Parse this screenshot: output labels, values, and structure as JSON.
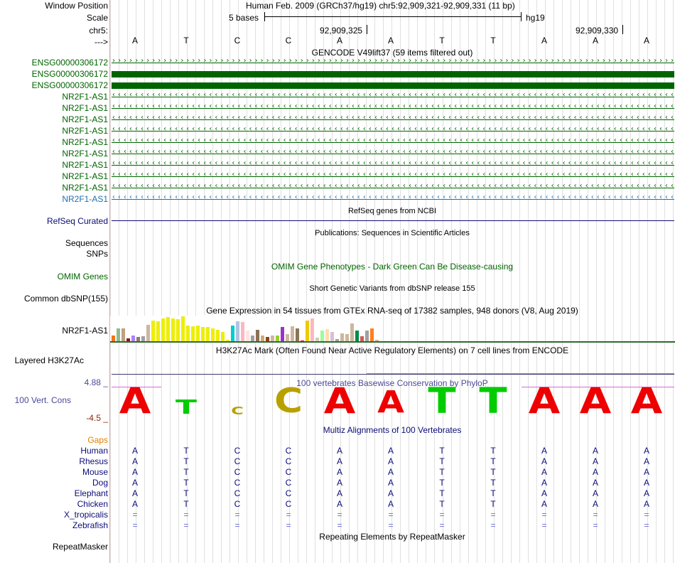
{
  "header": {
    "window_position_label": "Window Position",
    "scale_label": "Scale",
    "chrom_label": "chr5:",
    "strand_label": "--->",
    "assembly_text": "Human Feb. 2009 (GRCh37/hg19)   chr5:92,909,321-92,909,331 (11 bp)",
    "scale_text": "5 bases",
    "scale_db": "hg19",
    "pos_left": "92,909,325",
    "pos_right": "92,909,330",
    "bases": [
      "A",
      "T",
      "C",
      "C",
      "A",
      "A",
      "T",
      "T",
      "A",
      "A",
      "A"
    ]
  },
  "gencode": {
    "title": "GENCODE V49lift37 (59 items filtered out)",
    "items": [
      {
        "label": "ENSG00000306172",
        "style": "arrows-right",
        "color": "#006400"
      },
      {
        "label": "ENSG00000306172",
        "style": "solid",
        "color": "#006400"
      },
      {
        "label": "ENSG00000306172",
        "style": "solid",
        "color": "#006400"
      },
      {
        "label": "NR2F1-AS1",
        "style": "arrows-left",
        "color": "#006400"
      },
      {
        "label": "NR2F1-AS1",
        "style": "arrows-left",
        "color": "#006400"
      },
      {
        "label": "NR2F1-AS1",
        "style": "arrows-left",
        "color": "#006400"
      },
      {
        "label": "NR2F1-AS1",
        "style": "arrows-left",
        "color": "#006400"
      },
      {
        "label": "NR2F1-AS1",
        "style": "arrows-left",
        "color": "#006400"
      },
      {
        "label": "NR2F1-AS1",
        "style": "arrows-left",
        "color": "#006400"
      },
      {
        "label": "NR2F1-AS1",
        "style": "arrows-left",
        "color": "#006400"
      },
      {
        "label": "NR2F1-AS1",
        "style": "arrows-left",
        "color": "#006400"
      },
      {
        "label": "NR2F1-AS1",
        "style": "arrows-left",
        "color": "#006400"
      },
      {
        "label": "NR2F1-AS1",
        "style": "arrows-left",
        "color": "#1f6fae"
      }
    ]
  },
  "refseq": {
    "title": "RefSeq genes from NCBI",
    "label": "RefSeq Curated",
    "color": "#0c0c78"
  },
  "publications": {
    "title": "Publications: Sequences in Scientific Articles",
    "label1": "Sequences",
    "label2": "SNPs"
  },
  "omim": {
    "title": "OMIM Gene Phenotypes - Dark Green Can Be Disease-causing",
    "label": "OMIM Genes",
    "color": "#006400"
  },
  "dbsnp": {
    "title": "Short Genetic Variants from dbSNP release 155",
    "label": "Common dbSNP(155)"
  },
  "gtex": {
    "title": "Gene Expression in 54 tissues from GTEx RNA-seq of 17382 samples, 948 donors (V8, Aug 2019)",
    "label": "NR2F1-AS1",
    "values": [
      0.22,
      0.5,
      0.52,
      0.1,
      0.24,
      0.18,
      0.2,
      0.65,
      0.82,
      0.8,
      0.92,
      0.98,
      0.92,
      0.88,
      1.0,
      0.62,
      0.6,
      0.62,
      0.58,
      0.56,
      0.52,
      0.46,
      0.38,
      0.06,
      0.62,
      0.8,
      0.78,
      0.42,
      0.22,
      0.46,
      0.22,
      0.18,
      0.24,
      0.24,
      0.56,
      0.28,
      0.6,
      0.52,
      0.02,
      0.82,
      0.9,
      0.14,
      0.42,
      0.48,
      0.36,
      0.08,
      0.3,
      0.28,
      0.72,
      0.44,
      0.2,
      0.44,
      0.52,
      0.06
    ],
    "colors": [
      "#ee7621",
      "#8fbc8f",
      "#c0a080",
      "#8b1a1a",
      "#ab82ff",
      "#8b7b6b",
      "#a0a0a0",
      "#cdb79e",
      "#eeee00",
      "#eeee00",
      "#eeee00",
      "#eeee00",
      "#eeee00",
      "#eeee00",
      "#eeee00",
      "#eeee00",
      "#eeee00",
      "#eeee00",
      "#eeee00",
      "#eeee00",
      "#eeee00",
      "#eeee00",
      "#eeee00",
      "#eeee00",
      "#00cdcd",
      "#b0c4de",
      "#ffb6c1",
      "#ffe4e1",
      "#a0a0a0",
      "#8b7355",
      "#cdaa7d",
      "#8b4513",
      "#cdb79e",
      "#9acd32",
      "#9932cc",
      "#cdb79e",
      "#cdb79e",
      "#8b7355",
      "#ee0000",
      "#eec900",
      "#ffb6c1",
      "#cdcdb4",
      "#9aff9a",
      "#ffdead",
      "#d8bfd8",
      "#a0a0a0",
      "#cdb79e",
      "#cdb79e",
      "#cdb79e",
      "#008b45",
      "#cd5c5c",
      "#a0a0a0",
      "#ff7f24",
      "#cdb79e"
    ]
  },
  "h3k27ac": {
    "title": "H3K27Ac Mark (Often Found Near Active Regulatory Elements) on 7 cell lines from ENCODE",
    "label": "Layered H3K27Ac"
  },
  "phylop": {
    "title": "100 vertebrates Basewise Conservation by PhyloP",
    "label": "100 Vert. Cons",
    "ymax": "4.88 _",
    "ymin": "-4.5 _",
    "color": "#4a4a9a",
    "logos": [
      {
        "base": "A",
        "color": "#ee0000",
        "height": 1.0
      },
      {
        "base": "T",
        "color": "#00cc00",
        "height": 0.55
      },
      {
        "base": "C",
        "color": "#b8a000",
        "height": 0.3
      },
      {
        "base": "C",
        "color": "#b8a000",
        "height": 0.95
      },
      {
        "base": "A",
        "color": "#ee0000",
        "height": 1.0
      },
      {
        "base": "A",
        "color": "#ee0000",
        "height": 0.85
      },
      {
        "base": "T",
        "color": "#00cc00",
        "height": 1.0
      },
      {
        "base": "T",
        "color": "#00cc00",
        "height": 1.0
      },
      {
        "base": "A",
        "color": "#ee0000",
        "height": 1.0
      },
      {
        "base": "A",
        "color": "#ee0000",
        "height": 1.0
      },
      {
        "base": "A",
        "color": "#ee0000",
        "height": 1.0
      }
    ]
  },
  "multiz": {
    "title": "Multiz Alignments of 100 Vertebrates",
    "gaps_label": "Gaps",
    "gaps_color": "#e08000",
    "species": [
      {
        "name": "Human",
        "row": [
          "A",
          "T",
          "C",
          "C",
          "A",
          "A",
          "T",
          "T",
          "A",
          "A",
          "A"
        ]
      },
      {
        "name": "Rhesus",
        "row": [
          "A",
          "T",
          "C",
          "C",
          "A",
          "A",
          "T",
          "T",
          "A",
          "A",
          "A"
        ]
      },
      {
        "name": "Mouse",
        "row": [
          "A",
          "T",
          "C",
          "C",
          "A",
          "A",
          "T",
          "T",
          "A",
          "A",
          "A"
        ]
      },
      {
        "name": "Dog",
        "row": [
          "A",
          "T",
          "C",
          "C",
          "A",
          "A",
          "T",
          "T",
          "A",
          "A",
          "A"
        ]
      },
      {
        "name": "Elephant",
        "row": [
          "A",
          "T",
          "C",
          "C",
          "A",
          "A",
          "T",
          "T",
          "A",
          "A",
          "A"
        ]
      },
      {
        "name": "Chicken",
        "row": [
          "A",
          "T",
          "C",
          "C",
          "A",
          "A",
          "T",
          "T",
          "A",
          "A",
          "A"
        ]
      },
      {
        "name": "X_tropicalis",
        "row": [
          "=",
          "=",
          "=",
          "=",
          "=",
          "=",
          "=",
          "=",
          "=",
          "=",
          "="
        ]
      },
      {
        "name": "Zebrafish",
        "row": [
          "=",
          "=",
          "=",
          "=",
          "=",
          "=",
          "=",
          "=",
          "=",
          "=",
          "="
        ]
      }
    ]
  },
  "repeatmasker": {
    "title": "Repeating Elements by RepeatMasker",
    "label": "RepeatMasker"
  }
}
